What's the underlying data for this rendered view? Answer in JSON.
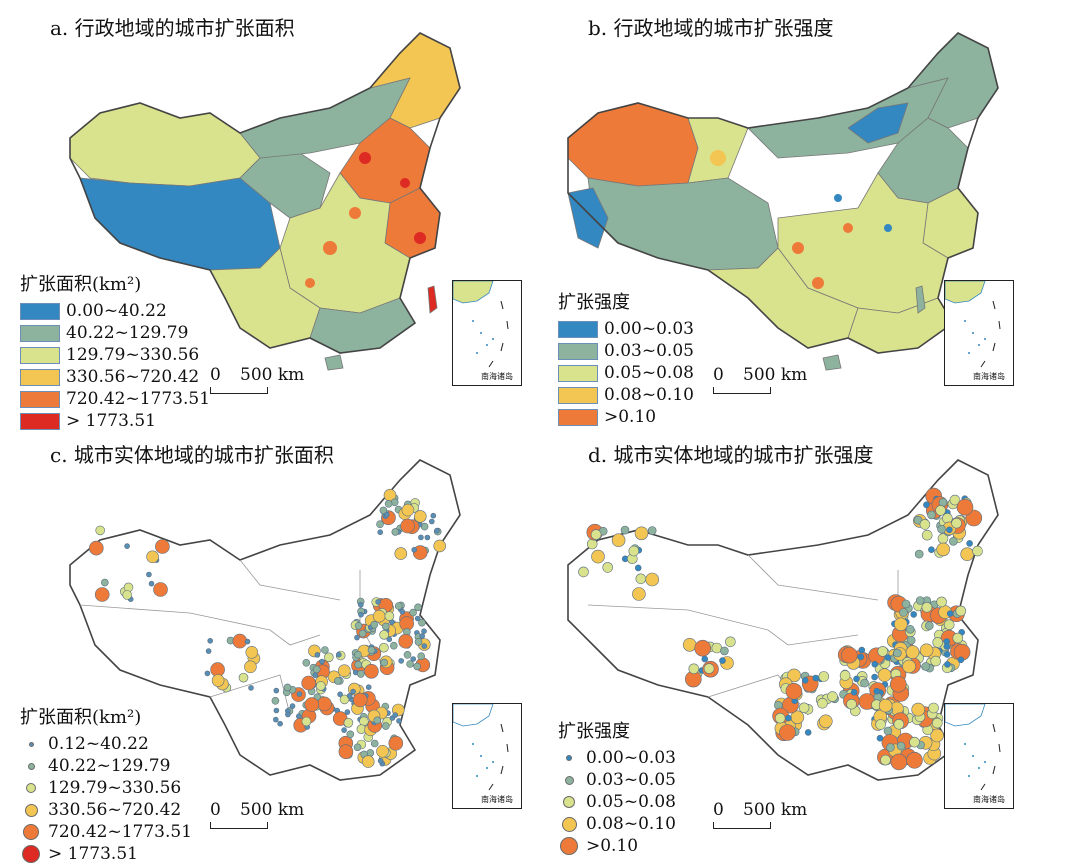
{
  "panels": {
    "a": {
      "title": "a. 行政地域的城市扩张面积",
      "legend_title": "扩张面积(km²)",
      "legend": [
        {
          "label": "0.00~40.22",
          "color": "#3388c1"
        },
        {
          "label": "40.22~129.79",
          "color": "#8db39e"
        },
        {
          "label": "129.79~330.56",
          "color": "#d9e28c"
        },
        {
          "label": "330.56~720.42",
          "color": "#f3c553"
        },
        {
          "label": "720.42~1773.51",
          "color": "#ee7a3a"
        },
        {
          "label": "> 1773.51",
          "color": "#dd2a23"
        }
      ]
    },
    "b": {
      "title": "b. 行政地域的城市扩张强度",
      "legend_title": "扩张强度",
      "legend": [
        {
          "label": "0.00~0.03",
          "color": "#3388c1"
        },
        {
          "label": "0.03~0.05",
          "color": "#8db39e"
        },
        {
          "label": "0.05~0.08",
          "color": "#d9e28c"
        },
        {
          "label": "0.08~0.10",
          "color": "#f3c553"
        },
        {
          "label": ">0.10",
          "color": "#ee7a3a"
        }
      ]
    },
    "c": {
      "title": "c. 城市实体地域的城市扩张面积",
      "legend_title": "扩张面积(km²)",
      "legend": [
        {
          "label": "0.12~40.22",
          "color": "#5a8fb5"
        },
        {
          "label": "40.22~129.79",
          "color": "#8db39e"
        },
        {
          "label": "129.79~330.56",
          "color": "#d9e28c"
        },
        {
          "label": "330.56~720.42",
          "color": "#f3c553"
        },
        {
          "label": "720.42~1773.51",
          "color": "#ee7a3a"
        },
        {
          "label": "> 1773.51",
          "color": "#dd2a23"
        }
      ]
    },
    "d": {
      "title": "d. 城市实体地域的城市扩张强度",
      "legend_title": "扩张强度",
      "legend": [
        {
          "label": "0.00~0.03",
          "color": "#3388c1"
        },
        {
          "label": "0.03~0.05",
          "color": "#8db39e"
        },
        {
          "label": "0.05~0.08",
          "color": "#d9e28c"
        },
        {
          "label": "0.08~0.10",
          "color": "#f3c553"
        },
        {
          "label": ">0.10",
          "color": "#ee7a3a"
        }
      ]
    }
  },
  "scale": {
    "zero": "0",
    "label": "500 km"
  },
  "inset_label": "南海诸岛"
}
